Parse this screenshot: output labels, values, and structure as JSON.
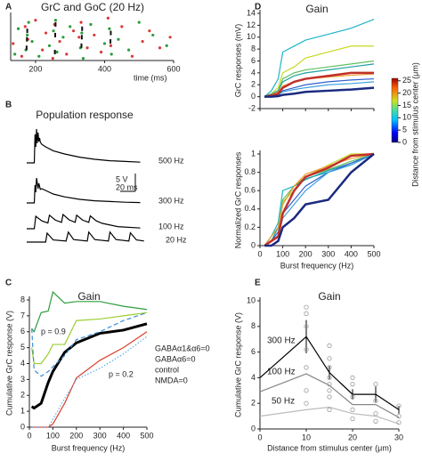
{
  "chart_data": [
    {
      "type": "raster",
      "panel": "A",
      "title": "GrC and GoC (20 Hz)",
      "xlabel": "time (ms)",
      "xlim": [
        128,
        600
      ],
      "xticks": [
        200,
        400,
        600
      ],
      "ylim": [
        0,
        21
      ],
      "series": [
        {
          "color": "#2a9d3a",
          "x": [
            140,
            150,
            172,
            176,
            180,
            190,
            210,
            240,
            252,
            258,
            262,
            280,
            300,
            330,
            334,
            338,
            360,
            400,
            414,
            420,
            440,
            470,
            500,
            540,
            580
          ],
          "values": [
            3,
            15,
            5,
            12,
            18,
            9,
            2,
            7,
            14,
            19,
            4,
            11,
            16,
            6,
            13,
            1,
            17,
            8,
            15,
            3,
            10,
            5,
            18,
            12,
            7
          ]
        },
        {
          "color": "#d93a3a",
          "x": [
            135,
            160,
            170,
            178,
            200,
            220,
            230,
            250,
            255,
            270,
            290,
            310,
            326,
            332,
            350,
            370,
            390,
            410,
            418,
            450,
            480,
            510,
            530,
            560,
            590
          ],
          "values": [
            8,
            2,
            16,
            10,
            19,
            5,
            13,
            1,
            17,
            9,
            3,
            14,
            11,
            18,
            6,
            12,
            4,
            20,
            7,
            16,
            2,
            9,
            14,
            6,
            11
          ]
        },
        {
          "color": "#111111",
          "x": [
            174,
            175,
            176,
            256,
            257,
            258,
            333,
            334,
            335,
            417,
            418
          ],
          "values": [
            6,
            10,
            14,
            4,
            12,
            17,
            7,
            11,
            15,
            9,
            13
          ]
        }
      ]
    },
    {
      "type": "traces",
      "panel": "B",
      "title": "Population response",
      "scalebar": {
        "v": 5,
        "ms": 20,
        "v_label": "5 V",
        "ms_label": "20 ms"
      },
      "series": [
        {
          "name": "500 Hz",
          "color": "#000000",
          "x": [
            0,
            10,
            11,
            12,
            13,
            14,
            15,
            16,
            17,
            18,
            20,
            25,
            35,
            50,
            70,
            90,
            110,
            130,
            150
          ],
          "values": [
            0,
            0,
            8,
            4.5,
            9.5,
            5.5,
            8.5,
            6,
            7,
            5.8,
            5.2,
            4.5,
            3.4,
            2.5,
            1.6,
            1.0,
            0.6,
            0.4,
            0.2
          ]
        },
        {
          "name": "300 Hz",
          "color": "#000000",
          "x": [
            0,
            10,
            11,
            12,
            13,
            15,
            16,
            18,
            20,
            25,
            35,
            50,
            70,
            90,
            110,
            130,
            150
          ],
          "values": [
            0,
            0,
            5,
            3,
            7,
            4,
            5.5,
            3.8,
            4,
            3.5,
            2.5,
            1.7,
            1.0,
            0.6,
            0.4,
            0.2,
            0.1
          ]
        },
        {
          "name": "100 Hz",
          "color": "#000000",
          "x": [
            0,
            10,
            12,
            20,
            28,
            30,
            38,
            46,
            48,
            56,
            64,
            66,
            74,
            82,
            84,
            92,
            100,
            120,
            150
          ],
          "values": [
            0,
            0,
            3.5,
            2.2,
            1.6,
            3.8,
            2.4,
            1.8,
            4,
            2.5,
            1.8,
            3.8,
            2.4,
            1.8,
            3.6,
            2.2,
            1.5,
            0.6,
            0.2
          ]
        },
        {
          "name": "20 Hz",
          "color": "#000000",
          "x": [
            0,
            25,
            27,
            35,
            52,
            55,
            62,
            80,
            82,
            90,
            108,
            110,
            118,
            135,
            137,
            145,
            155
          ],
          "values": [
            0,
            0,
            2.5,
            0.6,
            0.3,
            2.8,
            0.7,
            0.3,
            2.8,
            0.7,
            0.3,
            2.8,
            0.7,
            0.3,
            2.6,
            0.6,
            0.3
          ]
        }
      ]
    },
    {
      "type": "line",
      "panel": "C",
      "title": "Gain",
      "xlabel": "Burst frequency (Hz)",
      "ylabel": "Cumulative GrC response (V)",
      "xlim": [
        0,
        500
      ],
      "ylim": [
        0,
        8
      ],
      "xticks": [
        0,
        100,
        200,
        300,
        400,
        500
      ],
      "yticks": [
        0,
        1,
        2,
        3,
        4,
        5,
        6,
        7,
        8
      ],
      "x": [
        10,
        20,
        50,
        80,
        100,
        150,
        200,
        300,
        400,
        500
      ],
      "series": [
        {
          "name": "GABAα1&α6=0",
          "color": "#2e9e3e",
          "values": [
            6.2,
            6.0,
            7.2,
            7.3,
            8.5,
            7.8,
            7.9,
            7.9,
            7.6,
            7.4
          ]
        },
        {
          "name": "GABAα6=0",
          "color": "#9acd32",
          "values": [
            5.0,
            4.0,
            4.0,
            4.6,
            5.2,
            5.2,
            6.7,
            6.8,
            7.0,
            7.2
          ]
        },
        {
          "name": "control",
          "color": "#000000",
          "linewidth": 3,
          "values": [
            1.3,
            1.2,
            1.5,
            2.8,
            3.5,
            4.7,
            5.3,
            5.9,
            6.1,
            6.5
          ]
        },
        {
          "name": "NMDA=0",
          "color": "#d9412e",
          "values": [
            0,
            0,
            0,
            0,
            0.2,
            1.5,
            3.1,
            4.2,
            5.0,
            6.0
          ]
        },
        {
          "name": "p = 0.9",
          "color": "#3a8fd8",
          "dash": "dashed",
          "values": [
            6.2,
            3.6,
            3.2,
            3.5,
            3.8,
            4.5,
            5.5,
            6.0,
            6.7,
            7.2
          ]
        },
        {
          "name": "p = 0.2",
          "color": "#5ab0e8",
          "dash": "dotted",
          "values": [
            0,
            0,
            0,
            0,
            0.5,
            1.8,
            3.0,
            3.7,
            4.6,
            5.7
          ]
        }
      ]
    },
    {
      "type": "line",
      "panel": "D",
      "title": "Gain",
      "ylabel": "GrC responses (mV)",
      "xlim": [
        0,
        500
      ],
      "ylim": [
        -2,
        14
      ],
      "xticks": [
        0,
        100,
        200,
        300,
        400,
        500
      ],
      "yticks": [
        -2,
        0,
        2,
        4,
        6,
        8,
        10,
        12,
        14
      ],
      "x": [
        20,
        50,
        80,
        100,
        150,
        200,
        300,
        400,
        500
      ],
      "colorbar": {
        "label": "Distance from stimulus center (μm)",
        "lim": [
          0,
          26
        ],
        "ticks": [
          0,
          5,
          10,
          15,
          20,
          25
        ]
      },
      "series": [
        {
          "color": "#1fb5c9",
          "values": [
            0,
            1,
            3,
            7.5,
            8.5,
            9.5,
            10.5,
            11.5,
            13
          ]
        },
        {
          "color": "#c8d820",
          "values": [
            0,
            0.5,
            1.5,
            4,
            5,
            6.5,
            7.5,
            8.5,
            8.5
          ]
        },
        {
          "color": "#60c060",
          "values": [
            0,
            0.5,
            1,
            3,
            4,
            4.5,
            5,
            5.5,
            6
          ]
        },
        {
          "color": "#20a0a0",
          "values": [
            0,
            0.3,
            1,
            2.5,
            3.5,
            4,
            4.5,
            5,
            5.5
          ]
        },
        {
          "color": "#f0a030",
          "values": [
            0,
            0.3,
            0.8,
            1.8,
            2.5,
            3,
            3.3,
            3.6,
            3.8
          ]
        },
        {
          "color": "#3060d0",
          "values": [
            0,
            0.2,
            0.4,
            1,
            1.5,
            2,
            2.5,
            2.8,
            3
          ]
        },
        {
          "color": "#40a0e0",
          "values": [
            0,
            0.1,
            0.3,
            0.8,
            1.2,
            1.5,
            2,
            2.2,
            2.5
          ]
        },
        {
          "color": "#c0302a",
          "linewidth": 2.5,
          "values": [
            0,
            0.2,
            0.5,
            1.5,
            2.5,
            3,
            3.5,
            4,
            4
          ]
        },
        {
          "color": "#1a2a80",
          "linewidth": 2.5,
          "values": [
            0,
            0,
            0.1,
            0.3,
            0.5,
            0.8,
            1,
            1.2,
            1.5
          ]
        }
      ]
    },
    {
      "type": "line",
      "xlabel": "Burst frequency (Hz)",
      "ylabel": "Normalized GrC responses",
      "xlim": [
        0,
        500
      ],
      "ylim": [
        0,
        1
      ],
      "xticks": [
        0,
        100,
        200,
        300,
        400,
        500
      ],
      "yticks": [
        0,
        0.2,
        0.4,
        0.6,
        0.8,
        1
      ],
      "x": [
        20,
        50,
        80,
        100,
        150,
        200,
        300,
        400,
        500
      ],
      "series": [
        {
          "color": "#1fb5c9",
          "values": [
            0,
            0.1,
            0.25,
            0.6,
            0.65,
            0.73,
            0.8,
            0.88,
            1
          ]
        },
        {
          "color": "#c8d820",
          "values": [
            0,
            0.05,
            0.2,
            0.48,
            0.6,
            0.75,
            0.88,
            1,
            1
          ]
        },
        {
          "color": "#60c060",
          "values": [
            0,
            0.1,
            0.2,
            0.5,
            0.65,
            0.75,
            0.83,
            0.92,
            1
          ]
        },
        {
          "color": "#20a0a0",
          "values": [
            0,
            0.05,
            0.2,
            0.45,
            0.65,
            0.72,
            0.82,
            0.9,
            1
          ]
        },
        {
          "color": "#f0a030",
          "values": [
            0,
            0.1,
            0.2,
            0.45,
            0.65,
            0.78,
            0.87,
            0.95,
            1
          ]
        },
        {
          "color": "#3060d0",
          "values": [
            0,
            0.05,
            0.15,
            0.35,
            0.5,
            0.65,
            0.8,
            0.9,
            1
          ]
        },
        {
          "color": "#40a0e0",
          "values": [
            0,
            0.05,
            0.1,
            0.3,
            0.45,
            0.6,
            0.8,
            0.88,
            1
          ]
        },
        {
          "color": "#c0302a",
          "linewidth": 2.5,
          "values": [
            0,
            0.05,
            0.1,
            0.35,
            0.6,
            0.75,
            0.85,
            0.98,
            1
          ]
        },
        {
          "color": "#1a2a80",
          "linewidth": 2.5,
          "values": [
            0,
            0,
            0.05,
            0.2,
            0.3,
            0.45,
            0.5,
            0.8,
            1
          ]
        }
      ]
    },
    {
      "type": "line",
      "panel": "E",
      "title": "Gain",
      "xlabel": "Distance from stimulus center (μm)",
      "ylabel": "Cumulative GrC response (V)",
      "xlim": [
        0,
        30
      ],
      "ylim": [
        0,
        10
      ],
      "xticks": [
        0,
        10,
        20,
        30
      ],
      "yticks": [
        0,
        2,
        4,
        6,
        8,
        10
      ],
      "x": [
        0,
        10,
        15,
        20,
        25,
        30
      ],
      "series": [
        {
          "name": "300 Hz",
          "color": "#000000",
          "values": [
            4.0,
            7.2,
            4.4,
            2.7,
            2.7,
            1.5
          ],
          "errors": [
            0,
            1.3,
            0.5,
            0.4,
            0.6,
            0.3
          ]
        },
        {
          "name": "100 Hz",
          "color": "#888888",
          "values": [
            2.9,
            4.3,
            3.4,
            1.9,
            1.9,
            0.9
          ]
        },
        {
          "name": "50 Hz",
          "color": "#bbbbbb",
          "values": [
            1.0,
            1.5,
            1.7,
            1.2,
            1.0,
            0.4
          ]
        },
        {
          "color": "#999999",
          "marker": "circle",
          "x": [
            10,
            10,
            10,
            10,
            10,
            10,
            10,
            15,
            15,
            15,
            15,
            15,
            15,
            15,
            15,
            20,
            20,
            20,
            20,
            20,
            25,
            25,
            25,
            25,
            30,
            30,
            30
          ],
          "values": [
            9.5,
            9.0,
            8.0,
            6.2,
            4.8,
            3.0,
            2.0,
            6.5,
            5.5,
            4.8,
            4.0,
            3.5,
            3.0,
            2.5,
            1.5,
            4.0,
            3.5,
            2.5,
            1.5,
            0.8,
            3.5,
            2.2,
            1.2,
            0.6,
            1.8,
            1.0,
            0.5
          ]
        }
      ]
    }
  ]
}
